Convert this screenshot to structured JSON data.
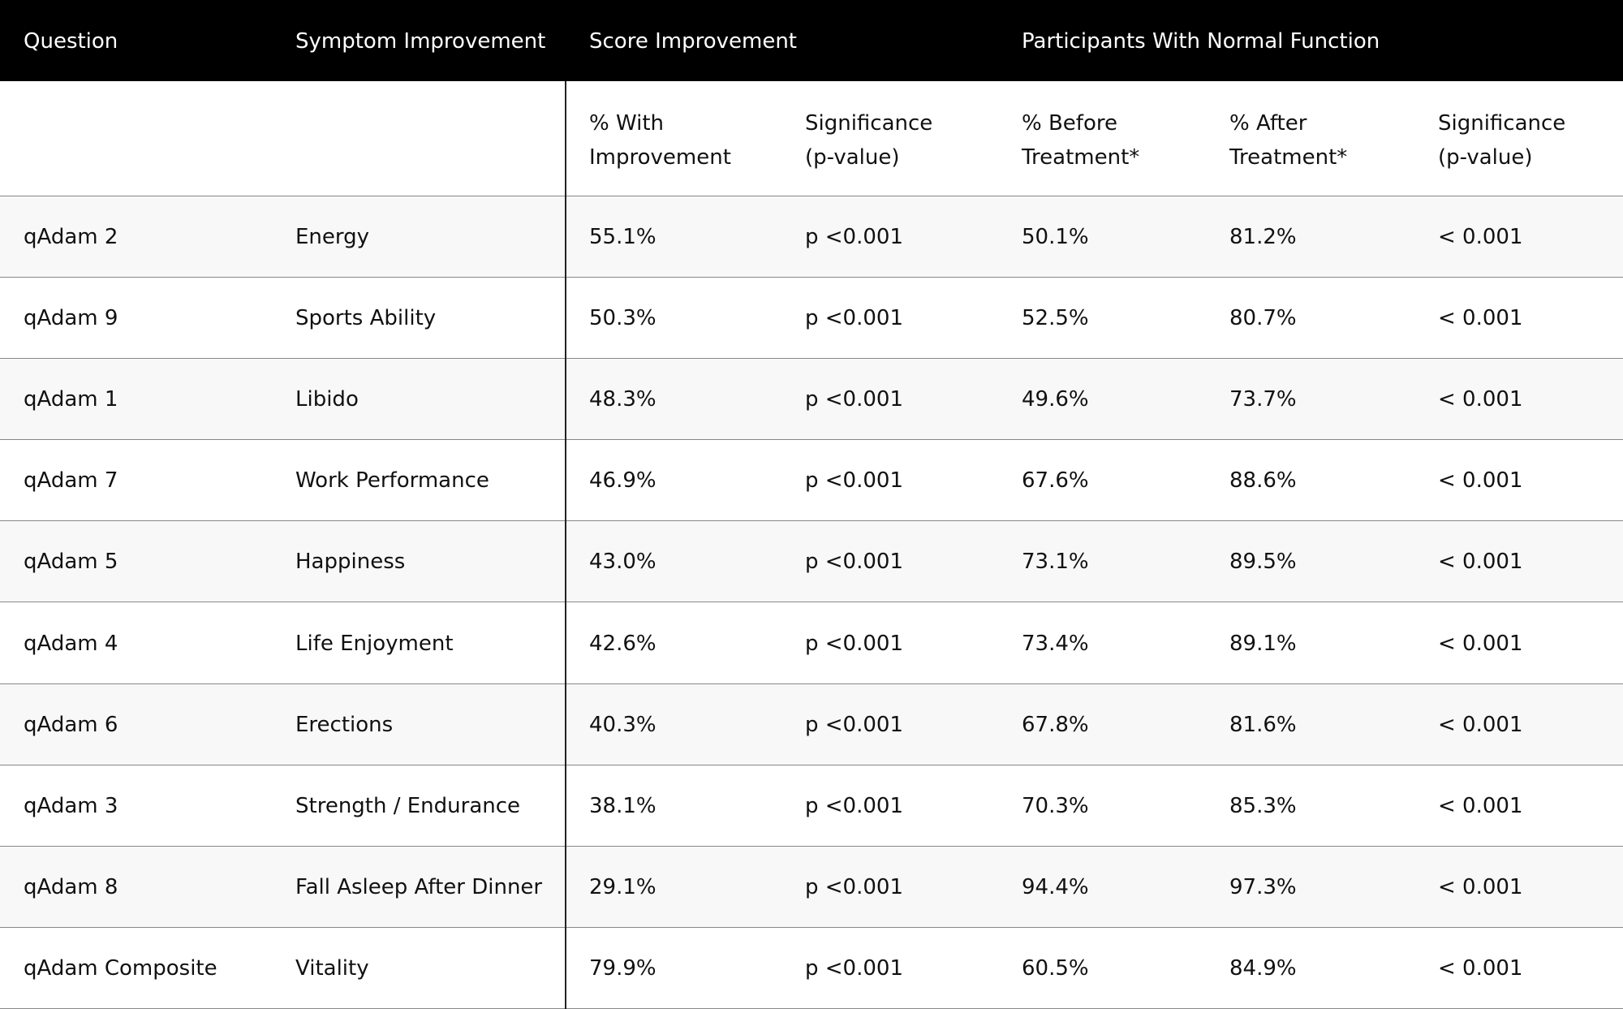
{
  "table": {
    "header": [
      "Question",
      "Symptom Improvement",
      "Score Improvement",
      "Participants With Normal Function"
    ],
    "subheader": [
      [
        "% With",
        "Improvement"
      ],
      [
        "Significance",
        "(p-value)"
      ],
      [
        "% Before",
        "Treatment*"
      ],
      [
        "% After",
        "Treatment*"
      ],
      [
        "Significance",
        "(p-value)"
      ]
    ],
    "rows": [
      [
        "qAdam 2",
        "Energy",
        "55.1%",
        "p <0.001",
        "50.1%",
        "81.2%",
        "< 0.001"
      ],
      [
        "qAdam 9",
        "Sports Ability",
        "50.3%",
        "p <0.001",
        "52.5%",
        "80.7%",
        "< 0.001"
      ],
      [
        "qAdam 1",
        "Libido",
        "48.3%",
        "p <0.001",
        "49.6%",
        "73.7%",
        "< 0.001"
      ],
      [
        "qAdam 7",
        "Work Performance",
        "46.9%",
        "p <0.001",
        "67.6%",
        "88.6%",
        "< 0.001"
      ],
      [
        "qAdam 5",
        "Happiness",
        "43.0%",
        "p <0.001",
        "73.1%",
        "89.5%",
        "< 0.001"
      ],
      [
        "qAdam 4",
        "Life Enjoyment",
        "42.6%",
        "p <0.001",
        "73.4%",
        "89.1%",
        "< 0.001"
      ],
      [
        "qAdam 6",
        "Erections",
        "40.3%",
        "p <0.001",
        "67.8%",
        "81.6%",
        "< 0.001"
      ],
      [
        "qAdam 3",
        "Strength / Endurance",
        "38.1%",
        "p <0.001",
        "70.3%",
        "85.3%",
        "< 0.001"
      ],
      [
        "qAdam 8",
        "Fall Asleep After Dinner",
        "29.1%",
        "p <0.001",
        "94.4%",
        "97.3%",
        "< 0.001"
      ],
      [
        "qAdam Composite",
        "Vitality",
        "79.9%",
        "p <0.001",
        "60.5%",
        "84.9%",
        "< 0.001"
      ]
    ]
  }
}
